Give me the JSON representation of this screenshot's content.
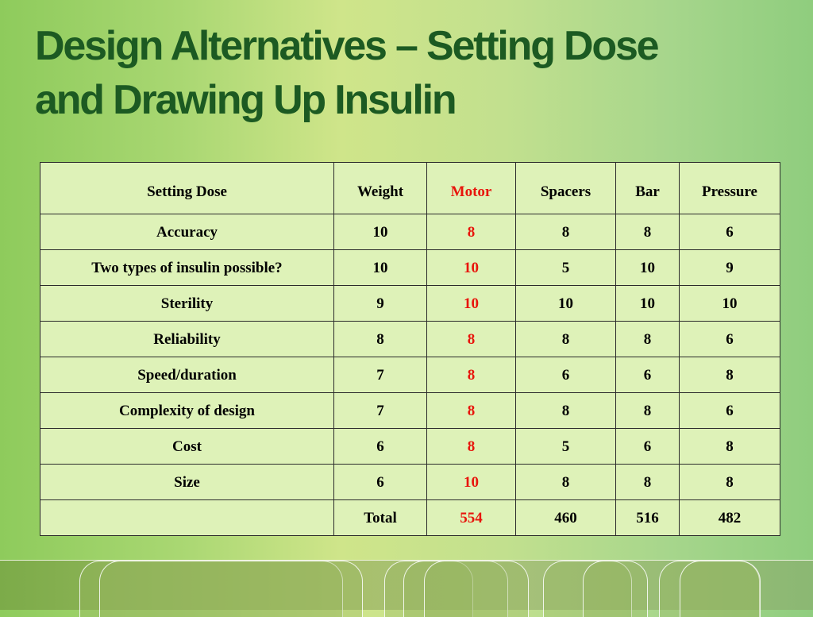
{
  "slide": {
    "title_line1": "Design Alternatives – Setting Dose",
    "title_line2": "and Drawing Up Insulin"
  },
  "table": {
    "headers": [
      "Setting Dose",
      "Weight",
      "Motor",
      "Spacers",
      "Bar",
      "Pressure"
    ],
    "rows": [
      {
        "criterion": "Accuracy",
        "values": [
          "10",
          "8",
          "8",
          "8",
          "6"
        ]
      },
      {
        "criterion": "Two types of insulin possible?",
        "values": [
          "10",
          "10",
          "5",
          "10",
          "9"
        ]
      },
      {
        "criterion": "Sterility",
        "values": [
          "9",
          "10",
          "10",
          "10",
          "10"
        ]
      },
      {
        "criterion": "Reliability",
        "values": [
          "8",
          "8",
          "8",
          "8",
          "6"
        ]
      },
      {
        "criterion": "Speed/duration",
        "values": [
          "7",
          "8",
          "6",
          "6",
          "8"
        ]
      },
      {
        "criterion": "Complexity of design",
        "values": [
          "7",
          "8",
          "8",
          "8",
          "6"
        ]
      },
      {
        "criterion": "Cost",
        "values": [
          "6",
          "8",
          "5",
          "6",
          "8"
        ]
      },
      {
        "criterion": "Size",
        "values": [
          "6",
          "10",
          "8",
          "8",
          "8"
        ]
      }
    ],
    "total_row": {
      "criterion": "",
      "values": [
        "Total",
        "554",
        "460",
        "516",
        "482"
      ]
    },
    "highlight_color": "#e8150c"
  },
  "colors": {
    "title": "#1c5a22",
    "table_fill": "#def2b8"
  }
}
